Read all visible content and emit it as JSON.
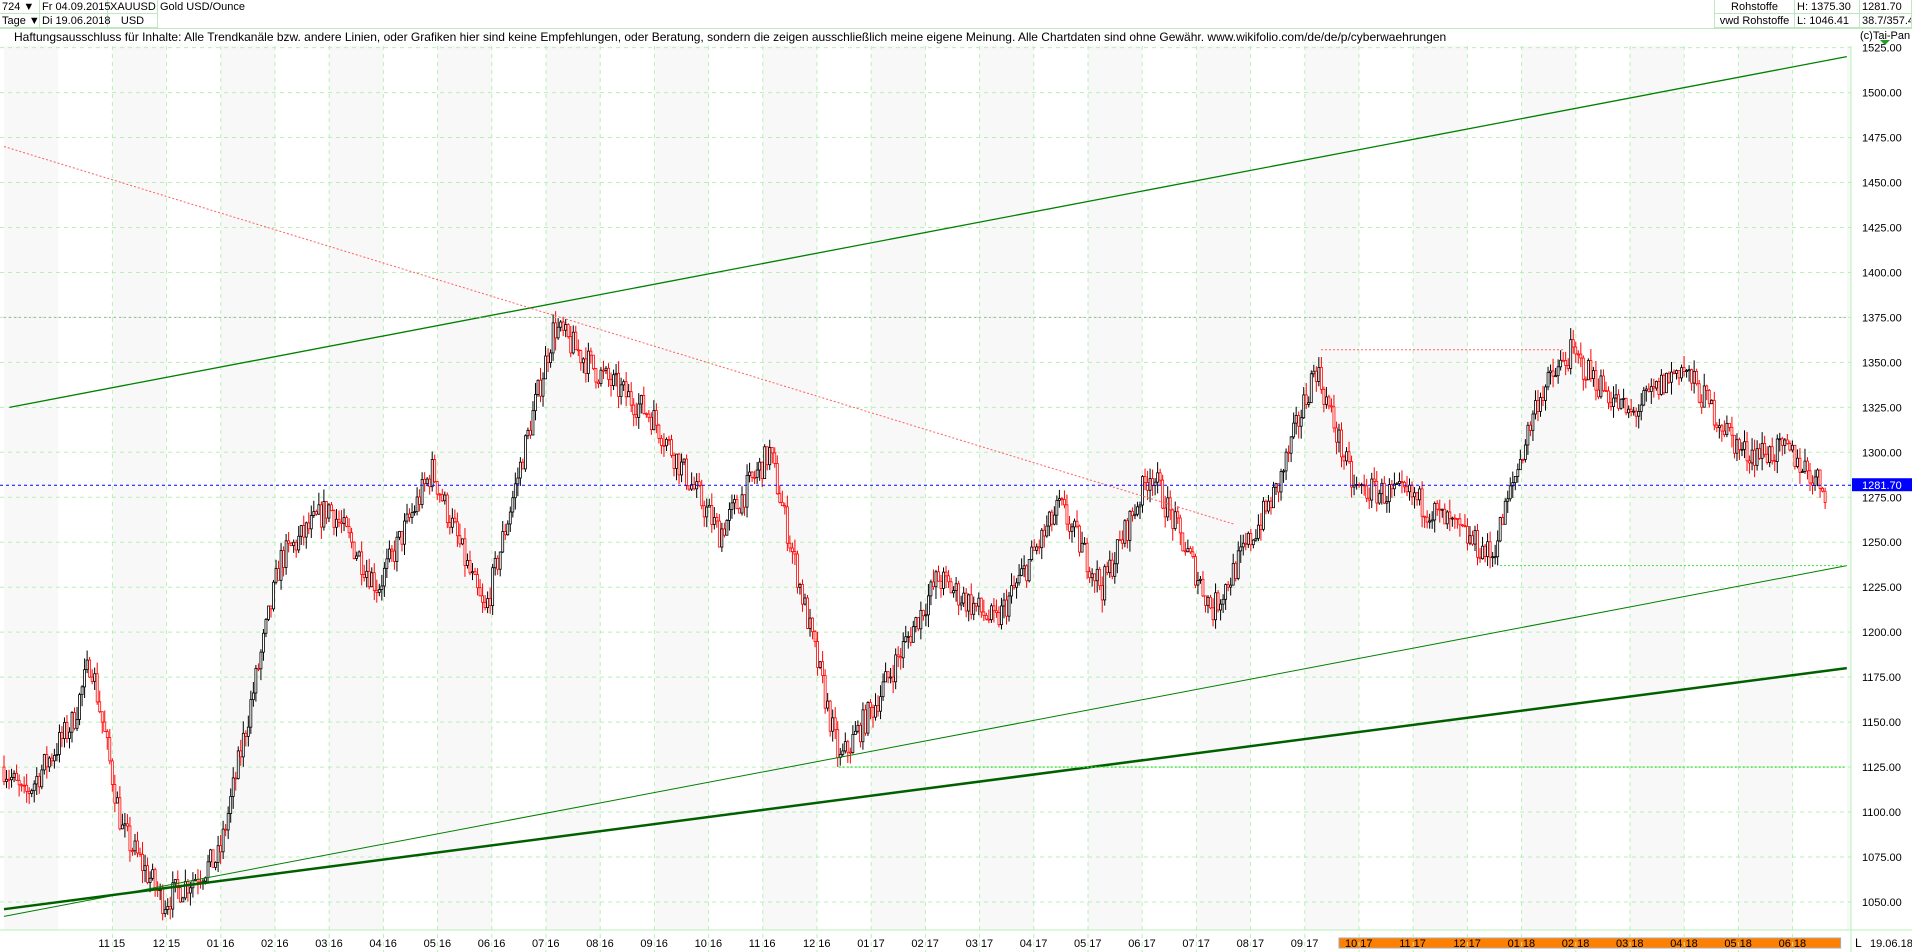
{
  "header": {
    "bars": "724",
    "period": "Tage",
    "date_from": "Fr 04.09.2015",
    "date_to": "Di 19.06.2018",
    "symbol": "XAUUSD",
    "currency": "USD",
    "name": "Gold USD/Ounce",
    "exchange1": "Rohstoffe",
    "exchange2": "vwd Rohstoffe",
    "high": "H: 1375.30",
    "low": "L: 1046.41",
    "last": "1281.70",
    "misc": "38.7/357.4"
  },
  "disclaimer": "Haftungsausschluss für Inhalte: Alle Trendkanäle bzw. andere Linien, oder Grafiken hier sind keine Empfehlungen, oder Beratung, sondern die zeigen ausschließlich meine eigene Meinung. Alle Chartdaten sind ohne Gewähr.  www.wikifolio.com/de/de/p/cyberwaehrungen",
  "copyright": "(c)Tai-Pan",
  "footer": {
    "mode": "L",
    "date": "19.06.18"
  },
  "colors": {
    "up": "#000000",
    "down": "#ff0000",
    "grid": "#b8f0b8",
    "trend": "#008000",
    "last": "#0000ff",
    "orange": "#ff8000"
  },
  "chart_data": {
    "type": "candlestick",
    "title": "Gold USD/Ounce (XAUUSD), daily",
    "ylim": [
      1035,
      1535
    ],
    "yticks": [
      "1525.00",
      "1500.00",
      "1475.00",
      "1450.00",
      "1425.00",
      "1400.00",
      "1375.00",
      "1350.00",
      "1325.00",
      "1300.00",
      "1275.00",
      "1250.00",
      "1225.00",
      "1200.00",
      "1175.00",
      "1150.00",
      "1125.00",
      "1100.00",
      "1075.00",
      "1050.00"
    ],
    "xticks": [
      "11 15",
      "12 15",
      "01 16",
      "02 16",
      "03 16",
      "04 16",
      "05 16",
      "06 16",
      "07 16",
      "08 16",
      "09 16",
      "10 16",
      "11 16",
      "12 16",
      "01 17",
      "02 17",
      "03 17",
      "04 17",
      "05 17",
      "06 17",
      "07 17",
      "08 17",
      "09 17",
      "10 17",
      "11 17",
      "12 17",
      "01 18",
      "02 18",
      "03 18",
      "04 18",
      "05 18",
      "06 18"
    ],
    "last_price": "1281.70",
    "price_path_months_since_sep2015": [
      [
        0,
        1125
      ],
      [
        0.37,
        1108
      ],
      [
        1.27,
        1150
      ],
      [
        1.6,
        1185
      ],
      [
        2.18,
        1090
      ],
      [
        2.95,
        1050
      ],
      [
        3.97,
        1075
      ],
      [
        5.1,
        1240
      ],
      [
        6.0,
        1270
      ],
      [
        6.9,
        1225
      ],
      [
        7.9,
        1290
      ],
      [
        8.87,
        1210
      ],
      [
        10.15,
        1370
      ],
      [
        10.94,
        1345
      ],
      [
        11.96,
        1320
      ],
      [
        13.2,
        1255
      ],
      [
        14.13,
        1300
      ],
      [
        15.42,
        1128
      ],
      [
        16.07,
        1160
      ],
      [
        17.23,
        1230
      ],
      [
        18.3,
        1205
      ],
      [
        19.48,
        1270
      ],
      [
        20.26,
        1225
      ],
      [
        21.16,
        1290
      ],
      [
        22.3,
        1212
      ],
      [
        23.5,
        1280
      ],
      [
        24.2,
        1348
      ],
      [
        24.9,
        1280
      ],
      [
        26.0,
        1275
      ],
      [
        27.45,
        1242
      ],
      [
        28.3,
        1330
      ],
      [
        28.9,
        1355
      ],
      [
        30.0,
        1320
      ],
      [
        30.94,
        1348
      ],
      [
        32.07,
        1300
      ],
      [
        32.95,
        1300
      ],
      [
        33.6,
        1280
      ]
    ],
    "lines": [
      {
        "name": "upper-channel",
        "from": [
          0.1,
          1325
        ],
        "to": [
          34,
          1520
        ]
      },
      {
        "name": "lower-channel",
        "from": [
          0,
          1042
        ],
        "to": [
          34,
          1237
        ]
      },
      {
        "name": "long-support",
        "from": [
          0,
          1046
        ],
        "to": [
          34,
          1180
        ]
      },
      {
        "name": "downtrend",
        "from": [
          0,
          1470
        ],
        "to": [
          22.7,
          1260
        ]
      },
      {
        "name": "resistance-1357",
        "from": [
          24.3,
          1357
        ],
        "to": [
          28.8,
          1357
        ]
      },
      {
        "name": "support-1237",
        "from": [
          27.6,
          1237
        ],
        "to": [
          34,
          1237
        ]
      },
      {
        "name": "support-1125",
        "from": [
          15.4,
          1125
        ],
        "to": [
          34,
          1125
        ]
      },
      {
        "name": "high-1375",
        "from": [
          0,
          1375
        ],
        "to": [
          34,
          1375
        ]
      }
    ]
  }
}
